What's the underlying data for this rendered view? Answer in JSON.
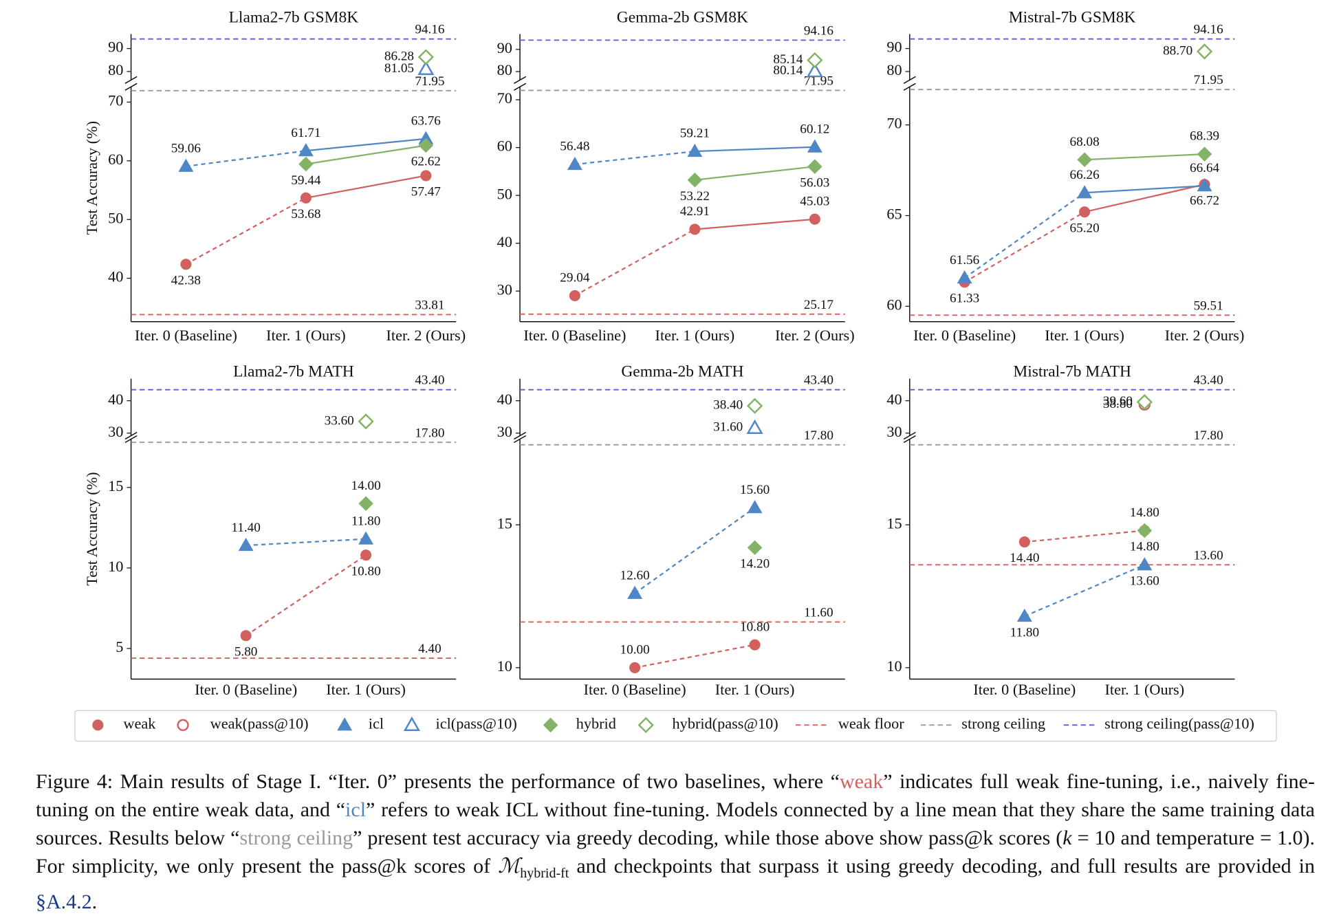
{
  "chart_data": [
    {
      "type": "line",
      "title": "Llama2-7b GSM8K",
      "ylabel": "Test Accuracy (%)",
      "categories": [
        "Iter. 0 (Baseline)",
        "Iter. 1 (Ours)",
        "Iter. 2 (Ours)"
      ],
      "ylim": [
        32.6,
        72.6
      ],
      "yticks": [
        40,
        50,
        60,
        70
      ],
      "ylim_top": [
        76.3,
        96.3
      ],
      "yticks_top": [
        80,
        90
      ],
      "series": [
        {
          "name": "weak",
          "color": "#d1605e",
          "marker": "circle",
          "filled": true,
          "values": [
            42.38,
            53.68,
            57.47
          ],
          "value_labels": [
            "42.38",
            "53.68",
            "57.47"
          ]
        },
        {
          "name": "weak(pass@10)",
          "color": "#d1605e",
          "marker": "circle",
          "filled": false,
          "values": [
            null,
            null,
            null
          ],
          "value_labels": [
            null,
            null,
            null
          ]
        },
        {
          "name": "icl",
          "color": "#4f86c6",
          "marker": "triangle",
          "filled": true,
          "values": [
            59.06,
            61.71,
            63.76
          ],
          "value_labels": [
            "59.06",
            "61.71",
            "63.76"
          ]
        },
        {
          "name": "icl(pass@10)",
          "color": "#4f86c6",
          "marker": "triangle",
          "filled": false,
          "values": [
            null,
            null,
            81.05
          ],
          "value_labels": [
            null,
            null,
            "81.05"
          ]
        },
        {
          "name": "hybrid",
          "color": "#82b366",
          "marker": "diamond",
          "filled": true,
          "values": [
            null,
            59.44,
            62.62
          ],
          "value_labels": [
            null,
            "59.44",
            "62.62"
          ]
        },
        {
          "name": "hybrid(pass@10)",
          "color": "#82b366",
          "marker": "diamond",
          "filled": false,
          "values": [
            null,
            null,
            86.28
          ],
          "value_labels": [
            null,
            null,
            "86.28"
          ]
        }
      ],
      "hlines": [
        {
          "name": "weak floor",
          "color": "#d1605e",
          "value": 33.81,
          "label": "33.81"
        },
        {
          "name": "strong ceiling",
          "color": "#999999",
          "value": 71.95,
          "label": "71.95"
        },
        {
          "name": "strong ceiling(pass@10)",
          "color": "#5a5ad1",
          "value": 94.16,
          "label": "94.16"
        }
      ]
    },
    {
      "type": "line",
      "title": "Gemma-2b GSM8K",
      "categories": [
        "Iter. 0 (Baseline)",
        "Iter. 1 (Ours)",
        "Iter. 2 (Ours)"
      ],
      "ylim": [
        23.6,
        72.7
      ],
      "yticks": [
        30,
        40,
        50,
        60,
        70
      ],
      "ylim_top": [
        76.2,
        96.9
      ],
      "yticks_top": [
        80,
        90
      ],
      "series": [
        {
          "name": "weak",
          "color": "#d1605e",
          "marker": "circle",
          "filled": true,
          "values": [
            29.04,
            42.91,
            45.03
          ],
          "value_labels": [
            "29.04",
            "42.91",
            "45.03"
          ]
        },
        {
          "name": "weak(pass@10)",
          "color": "#d1605e",
          "marker": "circle",
          "filled": false,
          "values": [
            null,
            null,
            null
          ],
          "value_labels": [
            null,
            null,
            null
          ]
        },
        {
          "name": "icl",
          "color": "#4f86c6",
          "marker": "triangle",
          "filled": true,
          "values": [
            56.48,
            59.21,
            60.12
          ],
          "value_labels": [
            "56.48",
            "59.21",
            "60.12"
          ]
        },
        {
          "name": "icl(pass@10)",
          "color": "#4f86c6",
          "marker": "triangle",
          "filled": false,
          "values": [
            null,
            null,
            80.14
          ],
          "value_labels": [
            null,
            null,
            "80.14"
          ]
        },
        {
          "name": "hybrid",
          "color": "#82b366",
          "marker": "diamond",
          "filled": true,
          "values": [
            null,
            53.22,
            56.03
          ],
          "value_labels": [
            null,
            "53.22",
            "56.03"
          ]
        },
        {
          "name": "hybrid(pass@10)",
          "color": "#82b366",
          "marker": "diamond",
          "filled": false,
          "values": [
            null,
            null,
            85.14
          ],
          "value_labels": [
            null,
            null,
            "85.14"
          ]
        }
      ],
      "hlines": [
        {
          "name": "weak floor",
          "color": "#d1605e",
          "value": 25.17,
          "label": "25.17"
        },
        {
          "name": "strong ceiling",
          "color": "#999999",
          "value": 71.95,
          "label": "71.95"
        },
        {
          "name": "strong ceiling(pass@10)",
          "color": "#5a5ad1",
          "value": 94.16,
          "label": "94.16"
        }
      ]
    },
    {
      "type": "line",
      "title": "Mistral-7b GSM8K",
      "categories": [
        "Iter. 0 (Baseline)",
        "Iter. 1 (Ours)",
        "Iter. 2 (Ours)"
      ],
      "ylim": [
        59.15,
        72.1
      ],
      "yticks": [
        60,
        65,
        70
      ],
      "ylim_top": [
        76.3,
        96.3
      ],
      "yticks_top": [
        80,
        90
      ],
      "series": [
        {
          "name": "weak",
          "color": "#d1605e",
          "marker": "circle",
          "filled": true,
          "values": [
            61.33,
            65.2,
            66.72
          ],
          "value_labels": [
            "61.33",
            "65.20",
            "66.72"
          ]
        },
        {
          "name": "weak(pass@10)",
          "color": "#d1605e",
          "marker": "circle",
          "filled": false,
          "values": [
            null,
            null,
            null
          ],
          "value_labels": [
            null,
            null,
            null
          ]
        },
        {
          "name": "icl",
          "color": "#4f86c6",
          "marker": "triangle",
          "filled": true,
          "values": [
            61.56,
            66.26,
            66.64
          ],
          "value_labels": [
            "61.56",
            "66.26",
            "66.64"
          ]
        },
        {
          "name": "icl(pass@10)",
          "color": "#4f86c6",
          "marker": "triangle",
          "filled": false,
          "values": [
            null,
            null,
            null
          ],
          "value_labels": [
            null,
            null,
            null
          ]
        },
        {
          "name": "hybrid",
          "color": "#82b366",
          "marker": "diamond",
          "filled": true,
          "values": [
            null,
            68.08,
            68.39
          ],
          "value_labels": [
            null,
            "68.08",
            "68.39"
          ]
        },
        {
          "name": "hybrid(pass@10)",
          "color": "#82b366",
          "marker": "diamond",
          "filled": false,
          "values": [
            null,
            null,
            88.7
          ],
          "value_labels": [
            null,
            null,
            "88.70"
          ]
        }
      ],
      "hlines": [
        {
          "name": "weak floor",
          "color": "#d1605e",
          "value": 59.51,
          "label": "59.51"
        },
        {
          "name": "strong ceiling",
          "color": "#999999",
          "value": 71.95,
          "label": "71.95"
        },
        {
          "name": "strong ceiling(pass@10)",
          "color": "#5a5ad1",
          "value": 94.16,
          "label": "94.16"
        }
      ]
    },
    {
      "type": "line",
      "title": "Llama2-7b MATH",
      "ylabel": "Test Accuracy (%)",
      "categories": [
        "Iter. 0 (Baseline)",
        "Iter. 1 (Ours)"
      ],
      "ylim": [
        3.1,
        18.0
      ],
      "yticks": [
        5,
        10,
        15
      ],
      "ylim_top": [
        29.2,
        46.8
      ],
      "yticks_top": [
        30,
        40
      ],
      "series": [
        {
          "name": "weak",
          "color": "#d1605e",
          "marker": "circle",
          "filled": true,
          "values": [
            5.8,
            10.8
          ],
          "value_labels": [
            "5.80",
            "10.80"
          ]
        },
        {
          "name": "weak(pass@10)",
          "color": "#d1605e",
          "marker": "circle",
          "filled": false,
          "values": [
            null,
            null
          ],
          "value_labels": [
            null,
            null
          ]
        },
        {
          "name": "icl",
          "color": "#4f86c6",
          "marker": "triangle",
          "filled": true,
          "values": [
            11.4,
            11.8
          ],
          "value_labels": [
            "11.40",
            "11.80"
          ]
        },
        {
          "name": "icl(pass@10)",
          "color": "#4f86c6",
          "marker": "triangle",
          "filled": false,
          "values": [
            null,
            null
          ],
          "value_labels": [
            null,
            null
          ]
        },
        {
          "name": "hybrid",
          "color": "#82b366",
          "marker": "diamond",
          "filled": true,
          "values": [
            null,
            14.0
          ],
          "value_labels": [
            null,
            "14.00"
          ]
        },
        {
          "name": "hybrid(pass@10)",
          "color": "#82b366",
          "marker": "diamond",
          "filled": false,
          "values": [
            null,
            33.6
          ],
          "value_labels": [
            null,
            "33.60"
          ]
        }
      ],
      "hlines": [
        {
          "name": "weak floor",
          "color": "#d1605e",
          "value": 4.4,
          "label": "4.40"
        },
        {
          "name": "strong ceiling",
          "color": "#999999",
          "value": 17.8,
          "label": "17.80"
        },
        {
          "name": "strong ceiling(pass@10)",
          "color": "#5a5ad1",
          "value": 43.4,
          "label": "43.40"
        }
      ]
    },
    {
      "type": "line",
      "title": "Gemma-2b MATH",
      "categories": [
        "Iter. 0 (Baseline)",
        "Iter. 1 (Ours)"
      ],
      "ylim": [
        9.6,
        18.0
      ],
      "yticks": [
        10,
        15
      ],
      "ylim_top": [
        29.2,
        46.8
      ],
      "yticks_top": [
        30,
        40
      ],
      "series": [
        {
          "name": "weak",
          "color": "#d1605e",
          "marker": "circle",
          "filled": true,
          "values": [
            10.0,
            10.8
          ],
          "value_labels": [
            "10.00",
            "10.80"
          ]
        },
        {
          "name": "weak(pass@10)",
          "color": "#d1605e",
          "marker": "circle",
          "filled": false,
          "values": [
            null,
            null
          ],
          "value_labels": [
            null,
            null
          ]
        },
        {
          "name": "icl",
          "color": "#4f86c6",
          "marker": "triangle",
          "filled": true,
          "values": [
            12.6,
            15.6
          ],
          "value_labels": [
            "12.60",
            "15.60"
          ]
        },
        {
          "name": "icl(pass@10)",
          "color": "#4f86c6",
          "marker": "triangle",
          "filled": false,
          "values": [
            null,
            31.6
          ],
          "value_labels": [
            null,
            "31.60"
          ]
        },
        {
          "name": "hybrid",
          "color": "#82b366",
          "marker": "diamond",
          "filled": true,
          "values": [
            null,
            14.2
          ],
          "value_labels": [
            null,
            "14.20"
          ]
        },
        {
          "name": "hybrid(pass@10)",
          "color": "#82b366",
          "marker": "diamond",
          "filled": false,
          "values": [
            null,
            38.4
          ],
          "value_labels": [
            null,
            "38.40"
          ]
        }
      ],
      "hlines": [
        {
          "name": "weak floor",
          "color": "#d1605e",
          "value": 11.6,
          "label": "11.60"
        },
        {
          "name": "strong ceiling",
          "color": "#999999",
          "value": 17.8,
          "label": "17.80"
        },
        {
          "name": "strong ceiling(pass@10)",
          "color": "#5a5ad1",
          "value": 43.4,
          "label": "43.40"
        }
      ]
    },
    {
      "type": "line",
      "title": "Mistral-7b MATH",
      "categories": [
        "Iter. 0 (Baseline)",
        "Iter. 1 (Ours)"
      ],
      "ylim": [
        9.6,
        18.0
      ],
      "yticks": [
        10,
        15
      ],
      "ylim_top": [
        29.2,
        46.8
      ],
      "yticks_top": [
        30,
        40
      ],
      "series": [
        {
          "name": "weak",
          "color": "#d1605e",
          "marker": "circle",
          "filled": true,
          "values": [
            14.4,
            14.8
          ],
          "value_labels": [
            "14.40",
            "14.80"
          ]
        },
        {
          "name": "weak(pass@10)",
          "color": "#d1605e",
          "marker": "circle",
          "filled": false,
          "values": [
            null,
            38.8
          ],
          "value_labels": [
            null,
            "38.80"
          ]
        },
        {
          "name": "icl",
          "color": "#4f86c6",
          "marker": "triangle",
          "filled": true,
          "values": [
            11.8,
            13.6
          ],
          "value_labels": [
            "11.80",
            "13.60"
          ]
        },
        {
          "name": "icl(pass@10)",
          "color": "#4f86c6",
          "marker": "triangle",
          "filled": false,
          "values": [
            null,
            null
          ],
          "value_labels": [
            null,
            null
          ]
        },
        {
          "name": "hybrid",
          "color": "#82b366",
          "marker": "diamond",
          "filled": true,
          "values": [
            null,
            14.8
          ],
          "value_labels": [
            null,
            "14.80"
          ]
        },
        {
          "name": "hybrid(pass@10)",
          "color": "#82b366",
          "marker": "diamond",
          "filled": false,
          "values": [
            null,
            39.6
          ],
          "value_labels": [
            null,
            "39.60"
          ]
        }
      ],
      "hlines": [
        {
          "name": "weak floor",
          "color": "#d1605e",
          "value": 13.6,
          "label": "13.60"
        },
        {
          "name": "strong ceiling",
          "color": "#999999",
          "value": 17.8,
          "label": "17.80"
        },
        {
          "name": "strong ceiling(pass@10)",
          "color": "#5a5ad1",
          "value": 43.4,
          "label": "43.40"
        }
      ]
    }
  ],
  "caption": {
    "runs": [
      {
        "text": "Figure 4:  Main results of Stage I. “Iter.  0” presents the performance of two baselines, where “"
      },
      {
        "text": "weak",
        "color": "#d1605e"
      },
      {
        "text": "” indicates full weak fine-tuning, i.e., naively fine-tuning on the entire weak data, and “"
      },
      {
        "text": "icl",
        "color": "#4f86c6"
      },
      {
        "text": "” refers to weak ICL without fine-tuning. Models connected by a line mean that they share the same training data sources. Results below “"
      },
      {
        "text": "strong ceiling",
        "color": "#999999"
      },
      {
        "text": "” present test accuracy via greedy decoding, while those above show pass@k scores ("
      },
      {
        "text": "k",
        "italic": true
      },
      {
        "text": " = 10 and temperature = 1.0). For simplicity, we only present the pass@k scores of "
      },
      {
        "text": "ℳ",
        "italic": true
      },
      {
        "text": "hybrid-ft",
        "sub": true
      },
      {
        "text": " and checkpoints that surpass it using greedy decoding, and full results are provided in "
      },
      {
        "text": "§A.4.2",
        "color": "#1a3a8f"
      },
      {
        "text": "."
      }
    ]
  }
}
